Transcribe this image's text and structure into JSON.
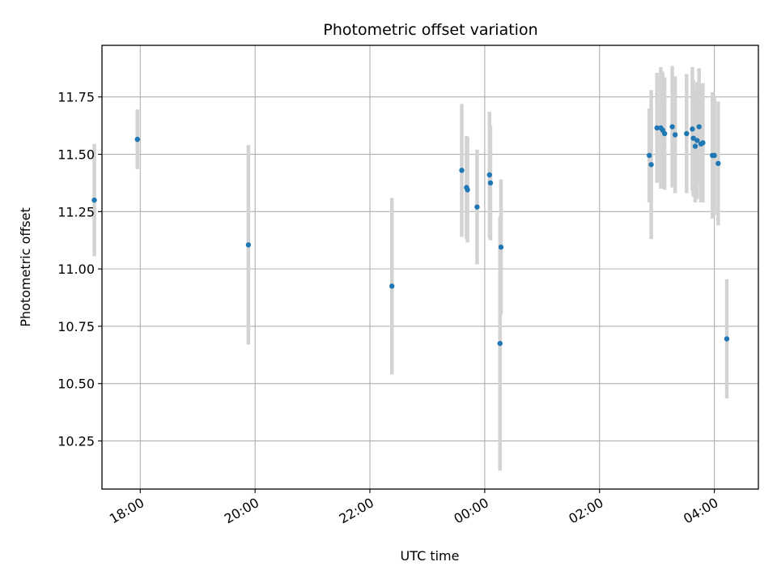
{
  "chart_data": {
    "type": "scatter",
    "title": "Photometric offset variation",
    "xlabel": "UTC time",
    "ylabel": "Photometric offset",
    "x_axis_kind": "time",
    "xlim": [
      "17:20",
      "04:46"
    ],
    "ylim": [
      10.04,
      11.975
    ],
    "xticks": [
      "18:00",
      "20:00",
      "22:00",
      "00:00",
      "02:00",
      "04:00"
    ],
    "yticks": [
      10.25,
      10.5,
      10.75,
      11.0,
      11.25,
      11.5,
      11.75
    ],
    "ytick_labels": [
      "10.25",
      "10.50",
      "10.75",
      "11.00",
      "11.25",
      "11.50",
      "11.75"
    ],
    "grid": true,
    "point_color": "#1f77b4",
    "errorbar_color": "#d3d3d3",
    "series": [
      {
        "points": [
          {
            "x": "17:12",
            "y": 11.3,
            "err": 0.245
          },
          {
            "x": "17:57",
            "y": 11.565,
            "err": 0.13
          },
          {
            "x": "19:53",
            "y": 11.105,
            "err": 0.435
          },
          {
            "x": "22:23",
            "y": 10.925,
            "err": 0.385
          },
          {
            "x": "23:36",
            "y": 11.43,
            "err": 0.29
          },
          {
            "x": "23:41",
            "y": 11.355,
            "err": 0.225
          },
          {
            "x": "23:42",
            "y": 11.345,
            "err": 0.23
          },
          {
            "x": "23:52",
            "y": 11.27,
            "err": 0.25
          },
          {
            "x": "00:05",
            "y": 11.41,
            "err": 0.275
          },
          {
            "x": "00:06",
            "y": 11.375,
            "err": 0.25
          },
          {
            "x": "00:16",
            "y": 10.675,
            "err": 0.555
          },
          {
            "x": "00:17",
            "y": 11.095,
            "err": 0.295
          },
          {
            "x": "02:52",
            "y": 11.495,
            "err": 0.205
          },
          {
            "x": "02:54",
            "y": 11.455,
            "err": 0.325
          },
          {
            "x": "03:00",
            "y": 11.615,
            "err": 0.24
          },
          {
            "x": "03:04",
            "y": 11.615,
            "err": 0.265
          },
          {
            "x": "03:06",
            "y": 11.605,
            "err": 0.255
          },
          {
            "x": "03:08",
            "y": 11.59,
            "err": 0.245
          },
          {
            "x": "03:16",
            "y": 11.62,
            "err": 0.265
          },
          {
            "x": "03:19",
            "y": 11.585,
            "err": 0.255
          },
          {
            "x": "03:31",
            "y": 11.59,
            "err": 0.26
          },
          {
            "x": "03:37",
            "y": 11.61,
            "err": 0.27
          },
          {
            "x": "03:38",
            "y": 11.57,
            "err": 0.255
          },
          {
            "x": "03:40",
            "y": 11.535,
            "err": 0.245
          },
          {
            "x": "03:42",
            "y": 11.56,
            "err": 0.255
          },
          {
            "x": "03:44",
            "y": 11.62,
            "err": 0.255
          },
          {
            "x": "03:46",
            "y": 11.545,
            "err": 0.255
          },
          {
            "x": "03:48",
            "y": 11.55,
            "err": 0.26
          },
          {
            "x": "03:58",
            "y": 11.495,
            "err": 0.275
          },
          {
            "x": "04:00",
            "y": 11.495,
            "err": 0.26
          },
          {
            "x": "04:04",
            "y": 11.46,
            "err": 0.27
          },
          {
            "x": "04:13",
            "y": 10.695,
            "err": 0.26
          }
        ]
      }
    ]
  }
}
